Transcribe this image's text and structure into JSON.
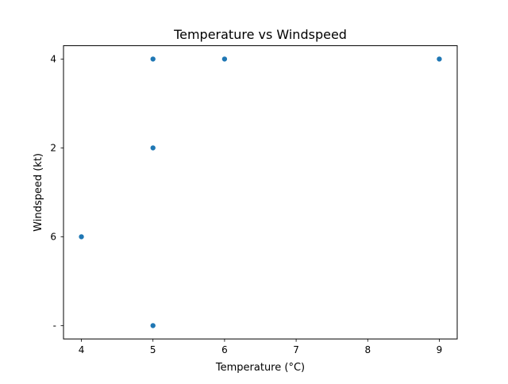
{
  "chart_data": {
    "type": "scatter",
    "title": "Temperature vs Windspeed",
    "xlabel": "Temperature (°C)",
    "ylabel": "Windspeed (kt)",
    "x_ticks": [
      4,
      5,
      6,
      7,
      8,
      9
    ],
    "xlim": [
      3.75,
      9.25
    ],
    "y_categories": [
      "-",
      "6",
      "2",
      "4"
    ],
    "points": [
      {
        "x": 5,
        "y": "4"
      },
      {
        "x": 6,
        "y": "4"
      },
      {
        "x": 9,
        "y": "4"
      },
      {
        "x": 5,
        "y": "2"
      },
      {
        "x": 4,
        "y": "6"
      },
      {
        "x": 5,
        "y": "-"
      }
    ],
    "marker_color": "#1f77b4",
    "grid": false,
    "legend": false
  }
}
